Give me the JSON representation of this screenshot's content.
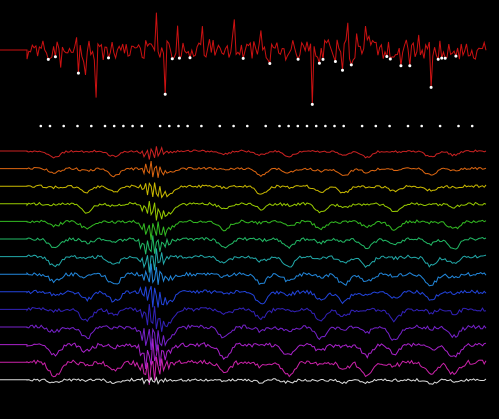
{
  "chart_data": {
    "type": "line",
    "title": "",
    "xlabel": "",
    "ylabel": "",
    "grid": false,
    "legend": "none",
    "x_points": 260,
    "xlim": [
      0,
      1
    ],
    "top_trace": {
      "name": "",
      "color": "#cc1111",
      "ylim": [
        0,
        1
      ],
      "peak_dot_color": "#ffffff",
      "description_values_sample": [
        0.45,
        0.62,
        0.38,
        0.71,
        0.55,
        0.9,
        0.3,
        0.52
      ]
    },
    "event_raster": {
      "color": "#ffffff",
      "events": [
        0.03,
        0.05,
        0.08,
        0.11,
        0.14,
        0.17,
        0.19,
        0.21,
        0.23,
        0.25,
        0.29,
        0.31,
        0.33,
        0.35,
        0.38,
        0.42,
        0.45,
        0.48,
        0.52,
        0.55,
        0.57,
        0.59,
        0.61,
        0.63,
        0.65,
        0.67,
        0.69,
        0.73,
        0.76,
        0.79,
        0.83,
        0.86,
        0.9,
        0.94,
        0.97
      ]
    },
    "stacked_series": [
      {
        "name": "",
        "color": "#cc2222"
      },
      {
        "name": "",
        "color": "#dd6611"
      },
      {
        "name": "",
        "color": "#ccbb00"
      },
      {
        "name": "",
        "color": "#99cc00"
      },
      {
        "name": "",
        "color": "#33bb22"
      },
      {
        "name": "",
        "color": "#22bb66"
      },
      {
        "name": "",
        "color": "#22aaaa"
      },
      {
        "name": "",
        "color": "#2288dd"
      },
      {
        "name": "",
        "color": "#2244dd"
      },
      {
        "name": "",
        "color": "#3322bb"
      },
      {
        "name": "",
        "color": "#7722cc"
      },
      {
        "name": "",
        "color": "#aa22cc"
      },
      {
        "name": "",
        "color": "#cc22aa"
      },
      {
        "name": "",
        "color": "#dddddd"
      }
    ]
  }
}
